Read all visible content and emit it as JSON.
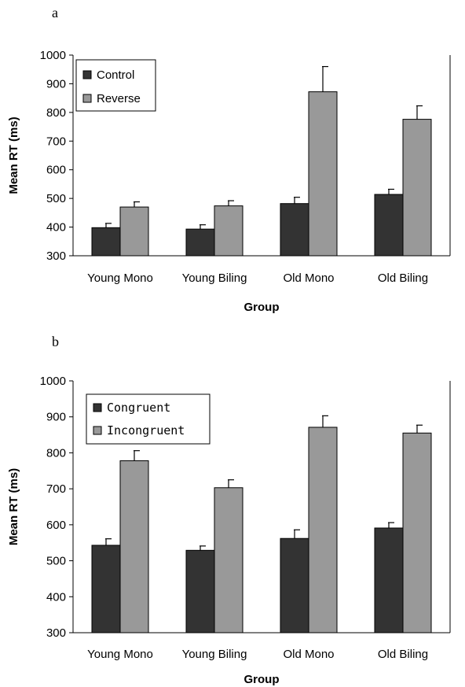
{
  "chart_data": [
    {
      "type": "bar",
      "panel_label": "a",
      "categories": [
        "Young Mono",
        "Young Biling",
        "Old Mono",
        "Old Biling"
      ],
      "series": [
        {
          "name": "Control",
          "color": "#333333",
          "values": [
            398,
            393,
            482,
            514
          ],
          "errors": [
            15,
            15,
            22,
            18
          ]
        },
        {
          "name": "Reverse",
          "color": "#999999",
          "values": [
            470,
            474,
            872,
            776
          ],
          "errors": [
            18,
            18,
            88,
            47
          ]
        }
      ],
      "xlabel": "Group",
      "ylabel": "Mean RT (ms)",
      "ylim": [
        300,
        1000
      ],
      "yticks": [
        300,
        400,
        500,
        600,
        700,
        800,
        900,
        1000
      ],
      "grid": false,
      "legend_position": "top-left"
    },
    {
      "type": "bar",
      "panel_label": "b",
      "categories": [
        "Young Mono",
        "Young Biling",
        "Old Mono",
        "Old Biling"
      ],
      "series": [
        {
          "name": "Congruent",
          "color": "#333333",
          "values": [
            543,
            529,
            562,
            591
          ],
          "errors": [
            18,
            12,
            24,
            15
          ]
        },
        {
          "name": "Incongruent",
          "color": "#999999",
          "values": [
            778,
            703,
            871,
            855
          ],
          "errors": [
            28,
            22,
            32,
            22
          ]
        }
      ],
      "xlabel": "Group",
      "ylabel": "Mean RT (ms)",
      "ylim": [
        300,
        1000
      ],
      "yticks": [
        300,
        400,
        500,
        600,
        700,
        800,
        900,
        1000
      ],
      "grid": false,
      "legend_position": "top-left"
    }
  ]
}
